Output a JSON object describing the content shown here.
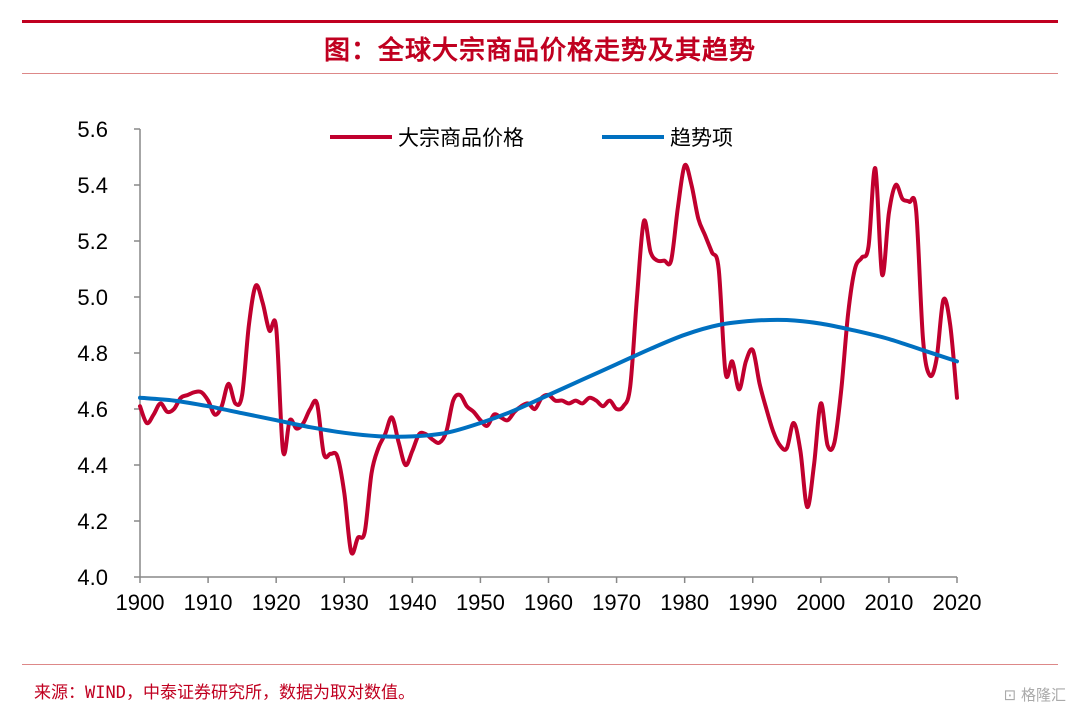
{
  "title": "图：全球大宗商品价格走势及其趋势",
  "source": "来源：WIND，中泰证券研究所，数据为取对数值。",
  "watermark": "格隆汇",
  "chart_data": {
    "type": "line",
    "title": "图：全球大宗商品价格走势及其趋势",
    "xlim": [
      1900,
      2020
    ],
    "ylim": [
      4.0,
      5.6
    ],
    "xticks": [
      "1900",
      "1910",
      "1920",
      "1930",
      "1940",
      "1950",
      "1960",
      "1970",
      "1980",
      "1990",
      "2000",
      "2010",
      "2020"
    ],
    "yticks": [
      "4.0",
      "4.2",
      "4.4",
      "4.6",
      "4.8",
      "5.0",
      "5.2",
      "5.4",
      "5.6"
    ],
    "grid": false,
    "legend_position": "top",
    "series": [
      {
        "name": "大宗商品价格",
        "color": "#c0002e",
        "x": [
          1900,
          1901,
          1902,
          1903,
          1904,
          1905,
          1906,
          1907,
          1908,
          1909,
          1910,
          1911,
          1912,
          1913,
          1914,
          1915,
          1916,
          1917,
          1918,
          1919,
          1920,
          1921,
          1922,
          1923,
          1924,
          1925,
          1926,
          1927,
          1928,
          1929,
          1930,
          1931,
          1932,
          1933,
          1934,
          1935,
          1936,
          1937,
          1938,
          1939,
          1940,
          1941,
          1942,
          1943,
          1944,
          1945,
          1946,
          1947,
          1948,
          1949,
          1950,
          1951,
          1952,
          1953,
          1954,
          1955,
          1956,
          1957,
          1958,
          1959,
          1960,
          1961,
          1962,
          1963,
          1964,
          1965,
          1966,
          1967,
          1968,
          1969,
          1970,
          1971,
          1972,
          1973,
          1974,
          1975,
          1976,
          1977,
          1978,
          1979,
          1980,
          1981,
          1982,
          1983,
          1984,
          1985,
          1986,
          1987,
          1988,
          1989,
          1990,
          1991,
          1992,
          1993,
          1994,
          1995,
          1996,
          1997,
          1998,
          1999,
          2000,
          2001,
          2002,
          2003,
          2004,
          2005,
          2006,
          2007,
          2008,
          2009,
          2010,
          2011,
          2012,
          2013,
          2014,
          2015,
          2016,
          2017,
          2018,
          2019,
          2020
        ],
        "values": [
          4.61,
          4.55,
          4.58,
          4.62,
          4.59,
          4.6,
          4.64,
          4.65,
          4.66,
          4.66,
          4.63,
          4.58,
          4.61,
          4.69,
          4.62,
          4.65,
          4.9,
          5.04,
          4.98,
          4.88,
          4.89,
          4.45,
          4.56,
          4.53,
          4.55,
          4.6,
          4.62,
          4.44,
          4.44,
          4.43,
          4.3,
          4.09,
          4.14,
          4.16,
          4.37,
          4.46,
          4.51,
          4.57,
          4.48,
          4.4,
          4.45,
          4.51,
          4.51,
          4.49,
          4.48,
          4.52,
          4.63,
          4.65,
          4.61,
          4.59,
          4.56,
          4.54,
          4.58,
          4.57,
          4.56,
          4.59,
          4.61,
          4.62,
          4.6,
          4.64,
          4.65,
          4.63,
          4.63,
          4.62,
          4.63,
          4.62,
          4.64,
          4.63,
          4.61,
          4.63,
          4.6,
          4.61,
          4.68,
          5.0,
          5.27,
          5.16,
          5.13,
          5.13,
          5.13,
          5.32,
          5.47,
          5.4,
          5.28,
          5.22,
          5.16,
          5.1,
          4.73,
          4.77,
          4.67,
          4.77,
          4.81,
          4.69,
          4.6,
          4.52,
          4.47,
          4.46,
          4.55,
          4.45,
          4.25,
          4.4,
          4.62,
          4.47,
          4.48,
          4.67,
          4.94,
          5.1,
          5.14,
          5.18,
          5.46,
          5.08,
          5.3,
          5.4,
          5.35,
          5.34,
          5.31,
          4.85,
          4.72,
          4.78,
          4.99,
          4.9,
          4.64
        ]
      },
      {
        "name": "趋势项",
        "color": "#0070c0",
        "x": [
          1900,
          1905,
          1910,
          1915,
          1920,
          1925,
          1930,
          1935,
          1940,
          1945,
          1950,
          1955,
          1960,
          1965,
          1970,
          1975,
          1980,
          1985,
          1990,
          1995,
          2000,
          2005,
          2010,
          2015,
          2020
        ],
        "values": [
          4.64,
          4.63,
          4.61,
          4.585,
          4.56,
          4.535,
          4.515,
          4.503,
          4.502,
          4.515,
          4.55,
          4.595,
          4.65,
          4.705,
          4.76,
          4.815,
          4.865,
          4.9,
          4.915,
          4.918,
          4.905,
          4.88,
          4.85,
          4.81,
          4.77
        ]
      }
    ]
  }
}
